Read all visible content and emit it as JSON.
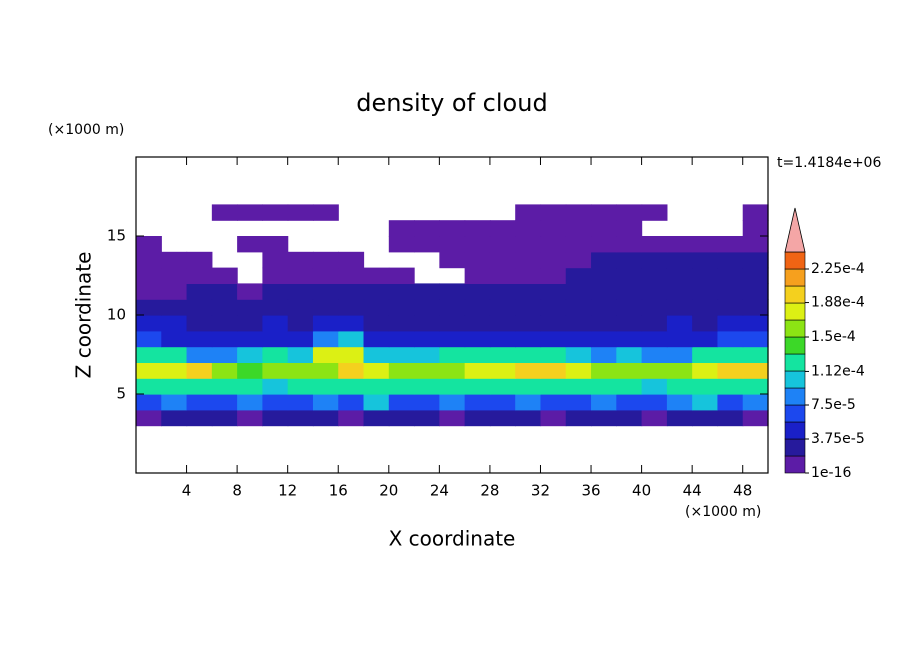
{
  "chart_data": {
    "type": "contour",
    "title": "density of cloud",
    "x_label": "X coordinate",
    "y_label": "Z coordinate",
    "x_unit": "(×1000 m)",
    "y_unit": "(×1000 m)",
    "annotation": "t=1.4184e+06",
    "xlim": [
      0,
      50
    ],
    "ylim": [
      0,
      20
    ],
    "xticks": [
      4,
      8,
      12,
      16,
      20,
      24,
      28,
      32,
      36,
      40,
      44,
      48
    ],
    "yticks": [
      5,
      10,
      15
    ],
    "x": [
      1,
      3,
      5,
      7,
      9,
      11,
      13,
      15,
      17,
      19,
      21,
      23,
      25,
      27,
      29,
      31,
      33,
      35,
      37,
      39,
      41,
      43,
      45,
      47,
      49
    ],
    "z": [
      3.5,
      4.5,
      5.5,
      6.5,
      7.5,
      8.5,
      9.5,
      10.5,
      11.5,
      12.5,
      13.5,
      14.5,
      15.5,
      16.5
    ],
    "values": [
      [
        1.5e-05,
        3e-05,
        3e-05,
        2.5e-05,
        1.5e-05,
        3e-05,
        3e-05,
        2.5e-05,
        1.5e-05,
        3e-05,
        3e-05,
        2.5e-05,
        1.5e-05,
        3e-05,
        3e-05,
        2.5e-05,
        1.5e-05,
        3e-05,
        3e-05,
        2.5e-05,
        1.5e-05,
        3e-05,
        3e-05,
        2.5e-05,
        1.5e-05
      ],
      [
        7e-05,
        8e-05,
        6.5e-05,
        7e-05,
        8e-05,
        7e-05,
        6.5e-05,
        8e-05,
        7e-05,
        9.5e-05,
        7e-05,
        6.5e-05,
        8e-05,
        7e-05,
        7e-05,
        8e-05,
        6.5e-05,
        7e-05,
        8e-05,
        7e-05,
        6.5e-05,
        8e-05,
        9.5e-05,
        7e-05,
        8e-05
      ],
      [
        0.00012,
        0.00013,
        0.000125,
        0.000115,
        0.00012,
        0.00011,
        0.000115,
        0.00012,
        0.00013,
        0.00012,
        0.000115,
        0.000125,
        0.00012,
        0.00013,
        0.000125,
        0.00012,
        0.000115,
        0.00012,
        0.00013,
        0.00012,
        0.00011,
        0.000115,
        0.00012,
        0.000125,
        0.00013
      ],
      [
        0.00017,
        0.000185,
        0.000195,
        0.00016,
        0.000145,
        0.00015,
        0.000155,
        0.000165,
        0.000195,
        0.00017,
        0.00016,
        0.000155,
        0.000165,
        0.000175,
        0.000185,
        0.000195,
        0.000195,
        0.00018,
        0.000165,
        0.00016,
        0.000155,
        0.00015,
        0.00017,
        0.000195,
        0.00019
      ],
      [
        0.00013,
        0.000125,
        9e-05,
        8.5e-05,
        0.00011,
        0.000115,
        0.000105,
        0.00017,
        0.000175,
        0.00011,
        0.0001,
        0.000105,
        0.000115,
        0.00012,
        0.000125,
        0.00013,
        0.00013,
        0.0001,
        9e-05,
        9.5e-05,
        8.5e-05,
        9e-05,
        0.000115,
        0.00012,
        0.000125
      ],
      [
        7e-05,
        5e-05,
        4.5e-05,
        5e-05,
        4.5e-05,
        5e-05,
        5.5e-05,
        9e-05,
        9.5e-05,
        5e-05,
        4.5e-05,
        5e-05,
        4.5e-05,
        5e-05,
        5e-05,
        5.5e-05,
        5e-05,
        4.5e-05,
        4.5e-05,
        5e-05,
        4.5e-05,
        5e-05,
        5e-05,
        6e-05,
        6e-05
      ],
      [
        4.5e-05,
        4e-05,
        3.5e-05,
        3e-05,
        3.5e-05,
        4e-05,
        3.5e-05,
        4.5e-05,
        4e-05,
        3.5e-05,
        3e-05,
        3.5e-05,
        3e-05,
        3.5e-05,
        3e-05,
        3.5e-05,
        3e-05,
        3e-05,
        3.5e-05,
        3e-05,
        3.5e-05,
        4e-05,
        3.5e-05,
        4e-05,
        4e-05
      ],
      [
        3e-05,
        2.5e-05,
        2.5e-05,
        2.5e-05,
        2.5e-05,
        2.5e-05,
        3e-05,
        2.5e-05,
        2.5e-05,
        2.5e-05,
        2.5e-05,
        2.5e-05,
        2.5e-05,
        2.5e-05,
        2.5e-05,
        2.5e-05,
        2.5e-05,
        2.5e-05,
        2.5e-05,
        2.5e-05,
        2.5e-05,
        2.5e-05,
        2.5e-05,
        3e-05,
        3e-05
      ],
      [
        1.5e-05,
        1.5e-05,
        2e-05,
        2e-05,
        1.5e-05,
        2e-05,
        2e-05,
        2e-05,
        2e-05,
        2e-05,
        2e-05,
        2e-05,
        2e-05,
        2e-05,
        2e-05,
        2e-05,
        2e-05,
        2e-05,
        2e-05,
        2e-05,
        2.5e-05,
        2.5e-05,
        2.5e-05,
        2.5e-05,
        2.5e-05
      ],
      [
        1e-05,
        1e-05,
        1e-05,
        1e-05,
        null,
        1e-05,
        1e-05,
        1e-05,
        1e-05,
        1e-05,
        1e-05,
        null,
        null,
        1e-05,
        1e-05,
        1e-05,
        1e-05,
        2e-05,
        2e-05,
        2e-05,
        2e-05,
        2e-05,
        2e-05,
        2e-05,
        2e-05
      ],
      [
        1e-05,
        1e-05,
        1e-05,
        null,
        null,
        1e-05,
        1e-05,
        1e-05,
        1e-05,
        null,
        null,
        null,
        1e-05,
        1e-05,
        1e-05,
        1e-05,
        1e-05,
        1e-05,
        2e-05,
        2e-05,
        2e-05,
        2e-05,
        2e-05,
        2e-05,
        2e-05
      ],
      [
        1e-05,
        null,
        null,
        null,
        1e-05,
        1e-05,
        null,
        null,
        null,
        null,
        1e-05,
        1e-05,
        1e-05,
        1e-05,
        1e-05,
        1e-05,
        1e-05,
        1e-05,
        1e-05,
        1e-05,
        1e-05,
        1e-05,
        1e-05,
        1e-05,
        1e-05
      ],
      [
        null,
        null,
        null,
        null,
        null,
        null,
        null,
        null,
        null,
        null,
        1e-05,
        1e-05,
        1e-05,
        1e-05,
        1e-05,
        1e-05,
        1e-05,
        1e-05,
        1e-05,
        1e-05,
        null,
        null,
        null,
        null,
        1e-05
      ],
      [
        null,
        null,
        null,
        1e-05,
        1e-05,
        1e-05,
        1e-05,
        1e-05,
        null,
        null,
        null,
        null,
        null,
        null,
        null,
        1e-05,
        1e-05,
        1e-05,
        1e-05,
        1e-05,
        1e-05,
        null,
        null,
        null,
        1e-05
      ]
    ],
    "levels": [
      1e-16,
      1.875e-05,
      3.75e-05,
      5.625e-05,
      7.5e-05,
      9.375e-05,
      0.0001125,
      0.00013125,
      0.00015,
      0.00016875,
      0.0001875,
      0.00020625,
      0.000225,
      0.00024375
    ],
    "colors": [
      "#5c1ca6",
      "#261a9c",
      "#1a20c8",
      "#1c48ee",
      "#1e82f6",
      "#16c4dc",
      "#14e4a0",
      "#3cd828",
      "#8ce414",
      "#dcf014",
      "#f4d01e",
      "#f6a01e",
      "#f06414"
    ],
    "extend_color": "#f4a6a6",
    "colorbar_ticks": [
      {
        "value": 1e-16,
        "label": "1e-16"
      },
      {
        "value": 3.75e-05,
        "label": "3.75e-5"
      },
      {
        "value": 7.5e-05,
        "label": "7.5e-5"
      },
      {
        "value": 0.000112,
        "label": "1.12e-4"
      },
      {
        "value": 0.00015,
        "label": "1.5e-4"
      },
      {
        "value": 0.000188,
        "label": "1.88e-4"
      },
      {
        "value": 0.000225,
        "label": "2.25e-4"
      }
    ]
  }
}
